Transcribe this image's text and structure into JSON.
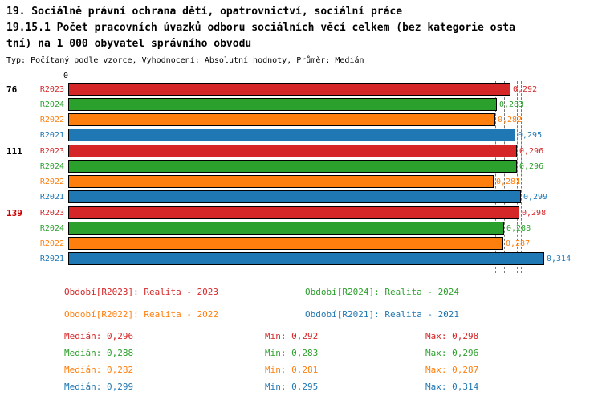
{
  "title": {
    "line1": "19. Sociálně právní ochrana dětí, opatrovnictví, sociální práce",
    "line2": "19.15.1 Počet pracovních úvazků odboru sociálních věcí celkem (bez kategorie osta",
    "line3": "tní) na 1 000 obyvatel správního obvodu",
    "meta": "Typ: Počítaný podle vzorce, Vyhodnocení: Absolutní hodnoty, Průměr: Medián"
  },
  "chart_data": {
    "type": "bar",
    "orientation": "horizontal",
    "axis_origin_label": "0",
    "value_axis_start": 0,
    "series_order": [
      "R2023",
      "R2024",
      "R2022",
      "R2021"
    ],
    "series_colors": {
      "R2023": "#d62728",
      "R2024": "#2ca02c",
      "R2022": "#ff7f0e",
      "R2021": "#1f77b4"
    },
    "groups": [
      {
        "label": "76",
        "label_color": "#000000",
        "bars": [
          {
            "period": "R2023",
            "value": 0.292,
            "display": "0,292"
          },
          {
            "period": "R2024",
            "value": 0.283,
            "display": "0,283"
          },
          {
            "period": "R2022",
            "value": 0.282,
            "display": "0,282"
          },
          {
            "period": "R2021",
            "value": 0.295,
            "display": "0,295"
          }
        ]
      },
      {
        "label": "111",
        "label_color": "#000000",
        "bars": [
          {
            "period": "R2023",
            "value": 0.296,
            "display": "0,296"
          },
          {
            "period": "R2024",
            "value": 0.296,
            "display": "0,296"
          },
          {
            "period": "R2022",
            "value": 0.281,
            "display": "0,281"
          },
          {
            "period": "R2021",
            "value": 0.299,
            "display": "0,299"
          }
        ]
      },
      {
        "label": "139",
        "label_color": "#cc0000",
        "bars": [
          {
            "period": "R2023",
            "value": 0.298,
            "display": "0,298"
          },
          {
            "period": "R2024",
            "value": 0.288,
            "display": "0,288"
          },
          {
            "period": "R2022",
            "value": 0.287,
            "display": "0,287"
          },
          {
            "period": "R2021",
            "value": 0.314,
            "display": "0,314"
          }
        ]
      }
    ],
    "median_lines": [
      0.282,
      0.288,
      0.296,
      0.299
    ],
    "legend": [
      {
        "label": "Období[R2023]: Realita - 2023",
        "color": "#d62728"
      },
      {
        "label": "Období[R2024]: Realita - 2024",
        "color": "#2ca02c"
      },
      {
        "label": "Období[R2022]: Realita - 2022",
        "color": "#ff7f0e"
      },
      {
        "label": "Období[R2021]: Realita - 2021",
        "color": "#1f77b4"
      }
    ],
    "stats": [
      {
        "median": "Medián: 0,296",
        "min": "Min: 0,292",
        "max": "Max: 0,298",
        "color": "#d62728"
      },
      {
        "median": "Medián: 0,288",
        "min": "Min: 0,283",
        "max": "Max: 0,296",
        "color": "#2ca02c"
      },
      {
        "median": "Medián: 0,282",
        "min": "Min: 0,281",
        "max": "Max: 0,287",
        "color": "#ff7f0e"
      },
      {
        "median": "Medián: 0,299",
        "min": "Min: 0,295",
        "max": "Max: 0,314",
        "color": "#1f77b4"
      }
    ]
  }
}
